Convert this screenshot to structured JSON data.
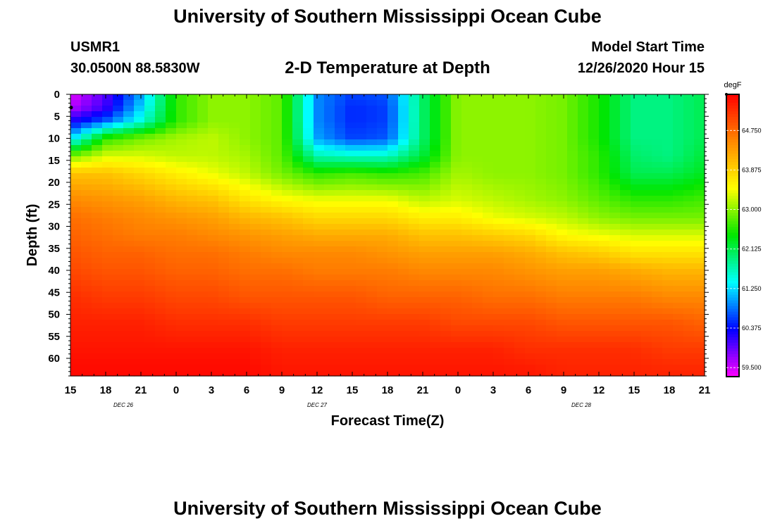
{
  "header": {
    "title": "University of Southern Mississippi Ocean Cube",
    "station_id": "USMR1",
    "station_coords": "30.0500N 88.5830W",
    "plot_title": "2-D Temperature at Depth",
    "model_label": "Model Start Time",
    "model_time": "12/26/2020 Hour 15"
  },
  "footer": {
    "title": "University of Southern Mississippi Ocean Cube"
  },
  "chart_data": {
    "type": "heatmap",
    "title": "2-D Temperature at Depth",
    "xlabel": "Forecast Time(Z)",
    "ylabel": "Depth (ft)",
    "x_tick_labels": [
      "15",
      "18",
      "21",
      "0",
      "3",
      "6",
      "9",
      "12",
      "15",
      "18",
      "21",
      "0",
      "3",
      "6",
      "9",
      "12",
      "15",
      "18",
      "21"
    ],
    "x_range_hours": [
      0,
      54
    ],
    "date_labels": [
      {
        "label": "DEC 26",
        "hour": 4.5
      },
      {
        "label": "DEC 27",
        "hour": 21
      },
      {
        "label": "DEC 28",
        "hour": 43.5
      }
    ],
    "y_tick_labels": [
      "0",
      "5",
      "10",
      "15",
      "20",
      "25",
      "30",
      "35",
      "40",
      "45",
      "50",
      "55",
      "60"
    ],
    "y_ticks": [
      0,
      5,
      10,
      15,
      20,
      25,
      30,
      35,
      40,
      45,
      50,
      55,
      60
    ],
    "ylim": [
      0,
      64
    ],
    "y_inverted": true,
    "colorbar": {
      "unit": "degF",
      "range": [
        59.3,
        65.55
      ],
      "tick_labels": [
        "64.750",
        "63.875",
        "63.000",
        "62.125",
        "61.250",
        "60.375",
        "59.500"
      ],
      "tick_values": [
        64.75,
        63.875,
        63.0,
        62.125,
        61.25,
        60.375,
        59.5
      ],
      "colors": [
        "#ff00ff",
        "#0000ff",
        "#00ffff",
        "#00e600",
        "#ffff00",
        "#ff8800",
        "#ff0000"
      ]
    },
    "depth_grid_ft": [
      0,
      3,
      6,
      10,
      14,
      18,
      24,
      28,
      32,
      36,
      40,
      46,
      52,
      58,
      64
    ],
    "time_grid_hours": [
      0,
      3,
      6,
      9,
      12,
      15,
      18,
      21,
      24,
      27,
      30,
      33,
      36,
      39,
      42,
      45,
      48,
      51,
      54
    ],
    "temperature_degF": [
      [
        59.4,
        60.0,
        61.0,
        62.6,
        63.0,
        63.0,
        62.8,
        60.9,
        60.6,
        60.7,
        62.0,
        63.0,
        63.0,
        63.0,
        62.9,
        62.5,
        61.9,
        61.9,
        62.1
      ],
      [
        59.6,
        60.1,
        61.2,
        62.6,
        63.0,
        63.0,
        62.8,
        60.9,
        60.5,
        60.6,
        62.0,
        63.0,
        63.0,
        63.0,
        62.9,
        62.5,
        61.9,
        61.9,
        62.1
      ],
      [
        60.2,
        60.7,
        61.5,
        62.6,
        63.0,
        63.0,
        62.8,
        60.9,
        60.5,
        60.6,
        62.0,
        63.0,
        63.0,
        63.0,
        62.9,
        62.5,
        61.9,
        61.9,
        62.1
      ],
      [
        61.2,
        62.6,
        62.9,
        63.1,
        63.2,
        63.0,
        62.8,
        61.0,
        60.6,
        60.7,
        62.0,
        63.0,
        63.0,
        63.0,
        62.9,
        62.5,
        61.9,
        61.9,
        62.1
      ],
      [
        62.9,
        63.3,
        63.3,
        63.2,
        63.2,
        63.1,
        62.8,
        61.7,
        61.6,
        61.6,
        62.2,
        63.0,
        63.0,
        63.0,
        62.9,
        62.6,
        62.0,
        61.9,
        62.2
      ],
      [
        64.0,
        64.0,
        63.8,
        63.6,
        63.4,
        63.2,
        62.9,
        62.6,
        62.7,
        62.6,
        62.7,
        63.1,
        63.0,
        63.0,
        62.9,
        62.6,
        62.1,
        62.1,
        62.3
      ],
      [
        64.5,
        64.4,
        64.3,
        64.1,
        64.0,
        63.7,
        63.5,
        63.4,
        63.4,
        63.4,
        63.2,
        63.3,
        63.2,
        63.1,
        63.0,
        62.8,
        62.6,
        62.6,
        62.7
      ],
      [
        64.7,
        64.6,
        64.5,
        64.4,
        64.3,
        64.1,
        64.0,
        63.8,
        63.8,
        63.8,
        63.6,
        63.6,
        63.4,
        63.3,
        63.2,
        63.0,
        62.9,
        62.9,
        62.9
      ],
      [
        64.8,
        64.7,
        64.6,
        64.6,
        64.5,
        64.4,
        64.3,
        64.2,
        64.2,
        64.2,
        64.0,
        64.0,
        63.9,
        63.8,
        63.5,
        63.4,
        63.3,
        63.3,
        63.3
      ],
      [
        64.9,
        64.8,
        64.8,
        64.7,
        64.7,
        64.6,
        64.5,
        64.5,
        64.5,
        64.4,
        64.3,
        64.3,
        64.3,
        64.2,
        64.0,
        63.9,
        63.7,
        63.7,
        63.7
      ],
      [
        65.0,
        64.9,
        64.9,
        64.8,
        64.8,
        64.7,
        64.7,
        64.6,
        64.6,
        64.6,
        64.5,
        64.5,
        64.5,
        64.4,
        64.3,
        64.3,
        64.2,
        64.1,
        64.1
      ],
      [
        65.2,
        65.1,
        65.1,
        65.0,
        65.0,
        64.9,
        64.9,
        64.9,
        64.9,
        64.8,
        64.8,
        64.8,
        64.7,
        64.7,
        64.6,
        64.6,
        64.6,
        64.5,
        64.5
      ],
      [
        65.3,
        65.3,
        65.3,
        65.2,
        65.2,
        65.2,
        65.1,
        65.1,
        65.1,
        65.1,
        65.1,
        65.0,
        65.0,
        65.0,
        64.9,
        64.9,
        64.9,
        64.9,
        64.8
      ],
      [
        65.4,
        65.4,
        65.4,
        65.4,
        65.4,
        65.4,
        65.3,
        65.3,
        65.3,
        65.3,
        65.3,
        65.3,
        65.3,
        65.2,
        65.2,
        65.2,
        65.2,
        65.1,
        65.1
      ],
      [
        65.5,
        65.5,
        65.5,
        65.5,
        65.5,
        65.5,
        65.4,
        65.4,
        65.4,
        65.4,
        65.4,
        65.4,
        65.4,
        65.4,
        65.3,
        65.3,
        65.3,
        65.3,
        65.3
      ]
    ]
  }
}
